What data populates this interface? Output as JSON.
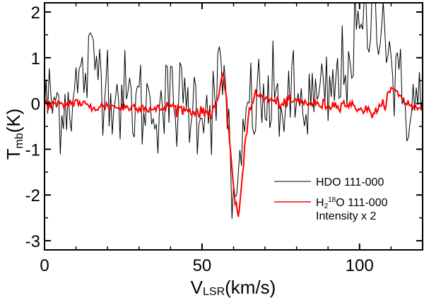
{
  "chart_data": {
    "type": "line",
    "title": "",
    "xlabel": {
      "main": "V",
      "sub": "LSR",
      "unit": "(km/s)"
    },
    "ylabel": {
      "main": "T",
      "sub": "mb",
      "unit": "(K)"
    },
    "xlim": [
      0,
      120
    ],
    "ylim": [
      -3.2,
      2.2
    ],
    "xticks": [
      0,
      50,
      100
    ],
    "xtick_labels": [
      "0",
      "50",
      "100"
    ],
    "yticks": [
      2,
      1,
      0,
      -1,
      -2,
      -3
    ],
    "ytick_labels": [
      "2",
      "1",
      "0",
      "-1",
      "-2",
      "-3"
    ],
    "series": [
      {
        "name": "HDO 111-000",
        "color": "#000000",
        "x_range": [
          0,
          120
        ],
        "step": 0.5,
        "noise_sigma": 0.55,
        "features": [
          {
            "center": 16,
            "width": 4,
            "amp": 0.9
          },
          {
            "center": 56.5,
            "width": 1.2,
            "amp": 0.6
          },
          {
            "center": 60.8,
            "width": 1.5,
            "amp": -2.5
          },
          {
            "center": 101,
            "width": 5,
            "amp": 1.5
          },
          {
            "center": 107,
            "width": 2.5,
            "amp": 1.3
          }
        ]
      },
      {
        "name": "H2 18 O 111-000 Intensity x 2",
        "color": "#ff0000",
        "x": [
          0,
          5,
          10,
          15,
          20,
          25,
          30,
          35,
          40,
          45,
          50,
          53,
          55,
          56.5,
          57.5,
          58.5,
          59.5,
          60.5,
          61.5,
          62.5,
          63.5,
          65,
          67,
          70,
          75,
          80,
          85,
          90,
          95,
          100,
          104,
          107,
          110,
          112,
          115,
          118,
          120
        ],
        "y": [
          0.0,
          -0.05,
          0.05,
          -0.1,
          -0.05,
          -0.1,
          -0.05,
          -0.15,
          -0.05,
          -0.15,
          -0.2,
          -0.2,
          0.1,
          0.6,
          0.2,
          -0.6,
          -1.4,
          -2.2,
          -2.5,
          -1.8,
          -1.0,
          -0.1,
          0.2,
          0.1,
          0.0,
          0.05,
          0.0,
          -0.05,
          0.0,
          -0.1,
          -0.2,
          -0.1,
          0.3,
          0.25,
          0.0,
          -0.1,
          -0.05
        ]
      }
    ],
    "legend": {
      "position": "bottom-right",
      "entries": [
        {
          "label": "HDO 111-000",
          "color": "#000000"
        },
        {
          "label_parts": [
            "H",
            "2",
            "18",
            "O 111-000"
          ],
          "extra": "Intensity x 2",
          "color": "#ff0000"
        }
      ]
    }
  }
}
